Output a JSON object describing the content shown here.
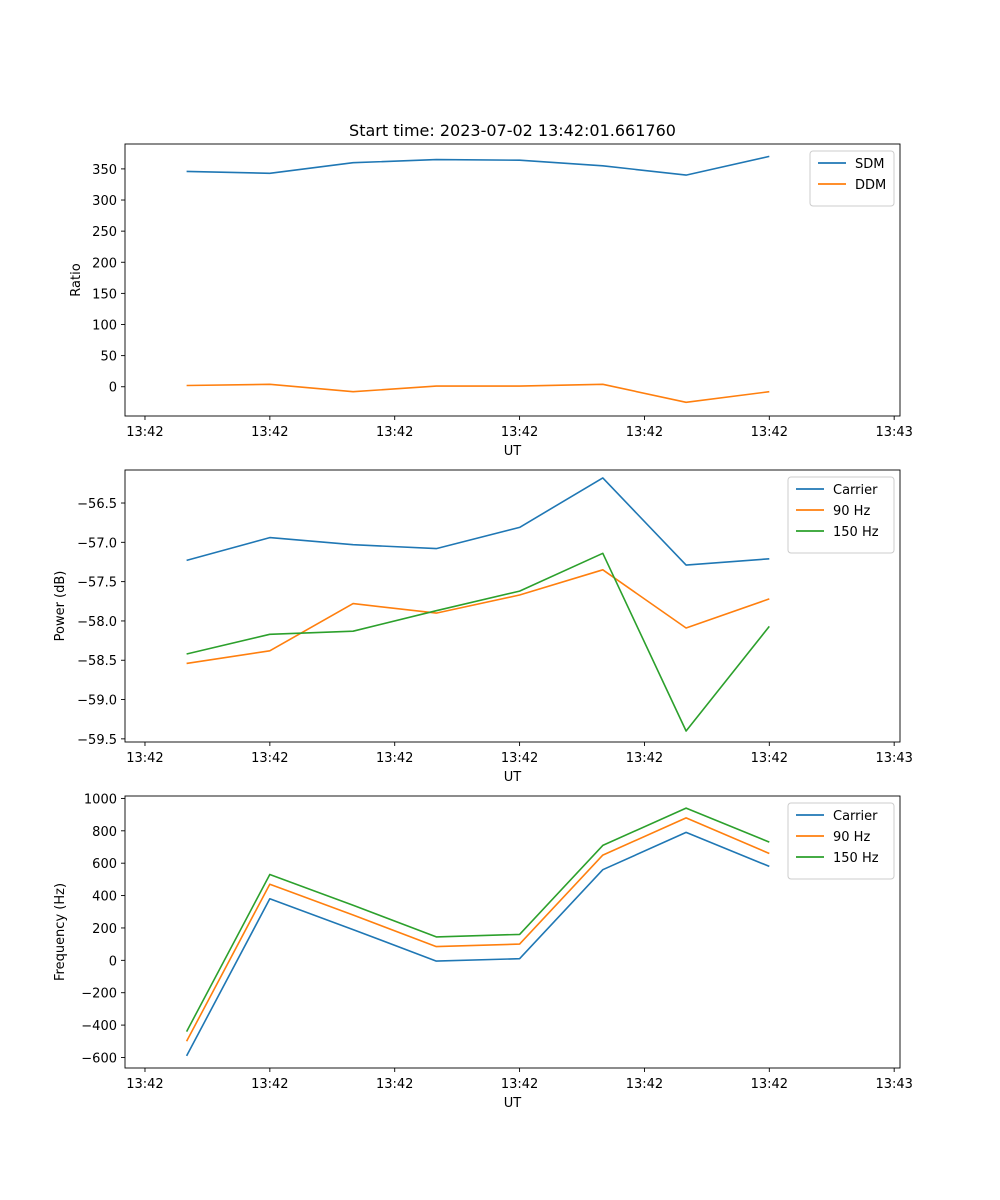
{
  "chart_data": [
    {
      "type": "line",
      "title": "Start time: 2023-07-02 13:42:01.661760",
      "xlabel": "UT",
      "ylabel": "Ratio",
      "x": [
        0.5,
        1.5,
        2.5,
        3.5,
        4.5,
        5.5,
        6.5,
        7.5
      ],
      "xlim": [
        -0.24,
        9.07
      ],
      "xticks": [
        0,
        1.5,
        3,
        4.5,
        6,
        7.5,
        9
      ],
      "xtick_labels": [
        "13:42",
        "13:42",
        "13:42",
        "13:42",
        "13:42",
        "13:42",
        "13:43"
      ],
      "ylim": [
        -47,
        390
      ],
      "yticks": [
        0,
        50,
        100,
        150,
        200,
        250,
        300,
        350
      ],
      "ytick_labels": [
        "0",
        "50",
        "100",
        "150",
        "200",
        "250",
        "300",
        "350"
      ],
      "legend": "top-right",
      "series": [
        {
          "name": "SDM",
          "color": "#1f77b4",
          "values": [
            346,
            343,
            360,
            365,
            364,
            355,
            340,
            370
          ]
        },
        {
          "name": "DDM",
          "color": "#ff7f0e",
          "values": [
            2,
            4,
            -8,
            1,
            1,
            4,
            -25,
            -8
          ]
        }
      ]
    },
    {
      "type": "line",
      "title": "",
      "xlabel": "UT",
      "ylabel": "Power (dB)",
      "x": [
        0.5,
        1.5,
        2.5,
        3.5,
        4.5,
        5.5,
        6.5,
        7.5
      ],
      "xlim": [
        -0.24,
        9.07
      ],
      "xticks": [
        0,
        1.5,
        3,
        4.5,
        6,
        7.5,
        9
      ],
      "xtick_labels": [
        "13:42",
        "13:42",
        "13:42",
        "13:42",
        "13:42",
        "13:42",
        "13:43"
      ],
      "ylim": [
        -59.54,
        -56.08
      ],
      "yticks": [
        -59.5,
        -59.0,
        -58.5,
        -58.0,
        -57.5,
        -57.0,
        -56.5
      ],
      "ytick_labels": [
        "−59.5",
        "−59.0",
        "−58.5",
        "−58.0",
        "−57.5",
        "−57.0",
        "−56.5"
      ],
      "legend": "top-right",
      "series": [
        {
          "name": "Carrier",
          "color": "#1f77b4",
          "values": [
            -57.23,
            -56.94,
            -57.03,
            -57.08,
            -56.81,
            -56.18,
            -57.29,
            -57.21
          ]
        },
        {
          "name": "90 Hz",
          "color": "#ff7f0e",
          "values": [
            -58.54,
            -58.38,
            -57.78,
            -57.9,
            -57.67,
            -57.35,
            -58.09,
            -57.72
          ]
        },
        {
          "name": "150 Hz",
          "color": "#2ca02c",
          "values": [
            -58.42,
            -58.17,
            -58.13,
            -57.87,
            -57.62,
            -57.14,
            -59.4,
            -58.07
          ]
        }
      ]
    },
    {
      "type": "line",
      "title": "",
      "xlabel": "UT",
      "ylabel": "Frequency (Hz)",
      "x": [
        0.5,
        1.5,
        2.5,
        3.5,
        4.5,
        5.5,
        6.5,
        7.5
      ],
      "xlim": [
        -0.24,
        9.07
      ],
      "xticks": [
        0,
        1.5,
        3,
        4.5,
        6,
        7.5,
        9
      ],
      "xtick_labels": [
        "13:42",
        "13:42",
        "13:42",
        "13:42",
        "13:42",
        "13:42",
        "13:43"
      ],
      "ylim": [
        -665,
        1015
      ],
      "yticks": [
        -600,
        -400,
        -200,
        0,
        200,
        400,
        600,
        800,
        1000
      ],
      "ytick_labels": [
        "−600",
        "−400",
        "−200",
        "0",
        "200",
        "400",
        "600",
        "800",
        "1000"
      ],
      "legend": "top-right",
      "series": [
        {
          "name": "Carrier",
          "color": "#1f77b4",
          "values": [
            -590,
            380,
            190,
            -5,
            10,
            560,
            790,
            580
          ]
        },
        {
          "name": "90 Hz",
          "color": "#ff7f0e",
          "values": [
            -500,
            470,
            280,
            85,
            100,
            650,
            880,
            660
          ]
        },
        {
          "name": "150 Hz",
          "color": "#2ca02c",
          "values": [
            -440,
            530,
            340,
            145,
            160,
            710,
            940,
            730
          ]
        }
      ]
    }
  ]
}
